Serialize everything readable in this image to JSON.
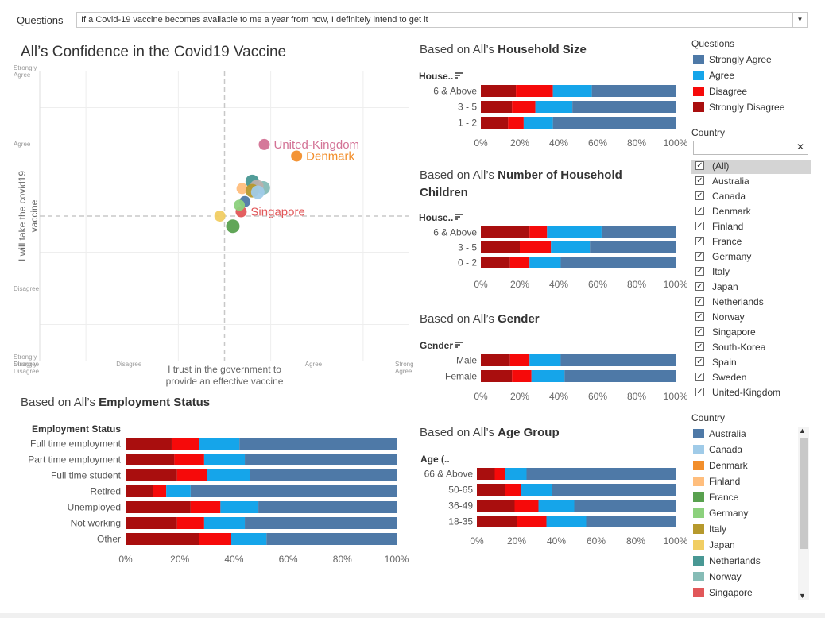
{
  "filter": {
    "label": "Questions",
    "selected": "If a Covid-19 vaccine becomes available to me a year from now, I definitely intend to get it"
  },
  "colors": {
    "strongly_agree": "#4e79a7",
    "agree": "#15a5ea",
    "disagree": "#f60a0a",
    "strongly_disagree": "#a90e0e"
  },
  "scatter": {
    "title": "All’s Confidence  in the Covid19 Vaccine",
    "xlabel": "I trust in the government to provide an effective vaccine",
    "ylabel": "I will take the covid19 vaccine",
    "x_ticks": [
      "Strongly Disagree",
      "Disagree",
      "Agree",
      "Strongly Agree"
    ],
    "y_ticks": [
      "Strongly Agree",
      "Agree",
      "Disagree",
      "Strongly Disagree"
    ]
  },
  "panels": {
    "household_size": {
      "pre": "Based on All’s ",
      "bold": "Household Size",
      "axis_title": "House.."
    },
    "children": {
      "pre": "Based on All’s ",
      "bold": "Number of Household",
      "bold2": "Children",
      "axis_title": "House.."
    },
    "gender": {
      "pre": "Based on All’s ",
      "bold": "Gender",
      "axis_title": "Gender"
    },
    "age": {
      "pre": "Based on All’s ",
      "bold": "Age Group",
      "axis_title": "Age (.."
    },
    "employment": {
      "pre": "Based on  All’s ",
      "bold": "Employment Status",
      "axis_title": "Employment Status"
    }
  },
  "legend_questions": {
    "title": "Questions",
    "items": [
      {
        "label": "Strongly Agree",
        "color": "#4e79a7"
      },
      {
        "label": "Agree",
        "color": "#15a5ea"
      },
      {
        "label": "Disagree",
        "color": "#f60a0a"
      },
      {
        "label": "Strongly Disagree",
        "color": "#a90e0e"
      }
    ]
  },
  "country_filter": {
    "title": "Country",
    "items": [
      "(All)",
      "Australia",
      "Canada",
      "Denmark",
      "Finland",
      "France",
      "Germany",
      "Italy",
      "Japan",
      "Netherlands",
      "Norway",
      "Singapore",
      "South-Korea",
      "Spain",
      "Sweden",
      "United-Kingdom"
    ]
  },
  "legend_country": {
    "title": "Country",
    "items": [
      {
        "label": "Australia",
        "color": "#4e79a7"
      },
      {
        "label": "Canada",
        "color": "#a0cbe8"
      },
      {
        "label": "Denmark",
        "color": "#f28e2b"
      },
      {
        "label": "Finland",
        "color": "#ffbe7d"
      },
      {
        "label": "France",
        "color": "#59a14f"
      },
      {
        "label": "Germany",
        "color": "#8cd17d"
      },
      {
        "label": "Italy",
        "color": "#b6992d"
      },
      {
        "label": "Japan",
        "color": "#f1ce63"
      },
      {
        "label": "Netherlands",
        "color": "#499894"
      },
      {
        "label": "Norway",
        "color": "#86bcb6"
      },
      {
        "label": "Singapore",
        "color": "#e15759"
      }
    ]
  },
  "chart_data": [
    {
      "type": "scatter",
      "title": "All’s Confidence  in the Covid19 Vaccine",
      "xlabel": "I trust in the government to provide an effective vaccine",
      "ylabel": "I will take the covid19 vaccine",
      "xlim": [
        1,
        5
      ],
      "ylim": [
        1,
        5
      ],
      "x_tick_labels": [
        "Strongly Disagree",
        "Disagree",
        "Agree",
        "Strongly Agree"
      ],
      "y_tick_labels": [
        "Strongly Disagree",
        "Disagree",
        "Agree",
        "Strongly Agree"
      ],
      "points": [
        {
          "country": "United-Kingdom",
          "x": 3.43,
          "y": 3.99,
          "color": "#d37295",
          "label": "United-Kingdom"
        },
        {
          "country": "Denmark",
          "x": 3.78,
          "y": 3.83,
          "color": "#f28e2b",
          "label": "Denmark"
        },
        {
          "country": "Singapore",
          "x": 3.18,
          "y": 3.06,
          "color": "#e15759",
          "label": "Singapore"
        },
        {
          "country": "Netherlands",
          "x": 3.3,
          "y": 3.48,
          "color": "#499894"
        },
        {
          "country": "Norway",
          "x": 3.42,
          "y": 3.39,
          "color": "#86bcb6"
        },
        {
          "country": "Spain",
          "x": 3.35,
          "y": 3.41,
          "color": "#bab0ac"
        },
        {
          "country": "Finland",
          "x": 3.19,
          "y": 3.38,
          "color": "#ffbe7d"
        },
        {
          "country": "Italy",
          "x": 3.3,
          "y": 3.35,
          "color": "#b6992d"
        },
        {
          "country": "Canada",
          "x": 3.36,
          "y": 3.33,
          "color": "#a0cbe8"
        },
        {
          "country": "Australia",
          "x": 3.22,
          "y": 3.2,
          "color": "#4e79a7"
        },
        {
          "country": "Germany",
          "x": 3.16,
          "y": 3.15,
          "color": "#8cd17d"
        },
        {
          "country": "Japan",
          "x": 2.95,
          "y": 3.0,
          "color": "#f1ce63"
        },
        {
          "country": "France",
          "x": 3.09,
          "y": 2.86,
          "color": "#59a14f"
        }
      ]
    },
    {
      "type": "bar",
      "stacked": true,
      "orientation": "horizontal",
      "name": "Household Size",
      "categories": [
        "6 & Above",
        "3 - 5",
        "1 - 2"
      ],
      "series": [
        {
          "name": "Strongly Disagree",
          "values": [
            18,
            16,
            14
          ]
        },
        {
          "name": "Disagree",
          "values": [
            19,
            12,
            8
          ]
        },
        {
          "name": "Agree",
          "values": [
            20,
            19,
            15
          ]
        },
        {
          "name": "Strongly Agree",
          "values": [
            43,
            53,
            63
          ]
        }
      ],
      "x_ticks": [
        "0%",
        "20%",
        "40%",
        "60%",
        "80%",
        "100%"
      ]
    },
    {
      "type": "bar",
      "stacked": true,
      "orientation": "horizontal",
      "name": "Number of Household Children",
      "categories": [
        "6 & Above",
        "3 - 5",
        "0 - 2"
      ],
      "series": [
        {
          "name": "Strongly Disagree",
          "values": [
            25,
            20,
            15
          ]
        },
        {
          "name": "Disagree",
          "values": [
            9,
            16,
            10
          ]
        },
        {
          "name": "Agree",
          "values": [
            28,
            20,
            16
          ]
        },
        {
          "name": "Strongly Agree",
          "values": [
            38,
            44,
            59
          ]
        }
      ],
      "x_ticks": [
        "0%",
        "20%",
        "40%",
        "60%",
        "80%",
        "100%"
      ]
    },
    {
      "type": "bar",
      "stacked": true,
      "orientation": "horizontal",
      "name": "Gender",
      "categories": [
        "Male",
        "Female"
      ],
      "series": [
        {
          "name": "Strongly Disagree",
          "values": [
            15,
            16
          ]
        },
        {
          "name": "Disagree",
          "values": [
            10,
            10
          ]
        },
        {
          "name": "Agree",
          "values": [
            16,
            17
          ]
        },
        {
          "name": "Strongly Agree",
          "values": [
            59,
            57
          ]
        }
      ],
      "x_ticks": [
        "0%",
        "20%",
        "40%",
        "60%",
        "80%",
        "100%"
      ]
    },
    {
      "type": "bar",
      "stacked": true,
      "orientation": "horizontal",
      "name": "Age Group",
      "categories": [
        "66 & Above",
        "50-65",
        "36-49",
        "18-35"
      ],
      "series": [
        {
          "name": "Strongly Disagree",
          "values": [
            9,
            14,
            19,
            20
          ]
        },
        {
          "name": "Disagree",
          "values": [
            5,
            8,
            12,
            15
          ]
        },
        {
          "name": "Agree",
          "values": [
            11,
            16,
            18,
            20
          ]
        },
        {
          "name": "Strongly Agree",
          "values": [
            75,
            62,
            51,
            45
          ]
        }
      ],
      "x_ticks": [
        "0%",
        "20%",
        "40%",
        "60%",
        "80%",
        "100%"
      ]
    },
    {
      "type": "bar",
      "stacked": true,
      "orientation": "horizontal",
      "name": "Employment Status",
      "categories": [
        "Full time employment",
        "Part time employment",
        "Full time student",
        "Retired",
        "Unemployed",
        "Not working",
        "Other"
      ],
      "series": [
        {
          "name": "Strongly Disagree",
          "values": [
            17,
            18,
            19,
            10,
            24,
            19,
            27
          ]
        },
        {
          "name": "Disagree",
          "values": [
            10,
            11,
            11,
            5,
            11,
            10,
            12
          ]
        },
        {
          "name": "Agree",
          "values": [
            15,
            15,
            16,
            9,
            14,
            15,
            13
          ]
        },
        {
          "name": "Strongly Agree",
          "values": [
            58,
            56,
            54,
            76,
            51,
            56,
            48
          ]
        }
      ],
      "x_ticks": [
        "0%",
        "20%",
        "40%",
        "60%",
        "80%",
        "100%"
      ]
    }
  ]
}
